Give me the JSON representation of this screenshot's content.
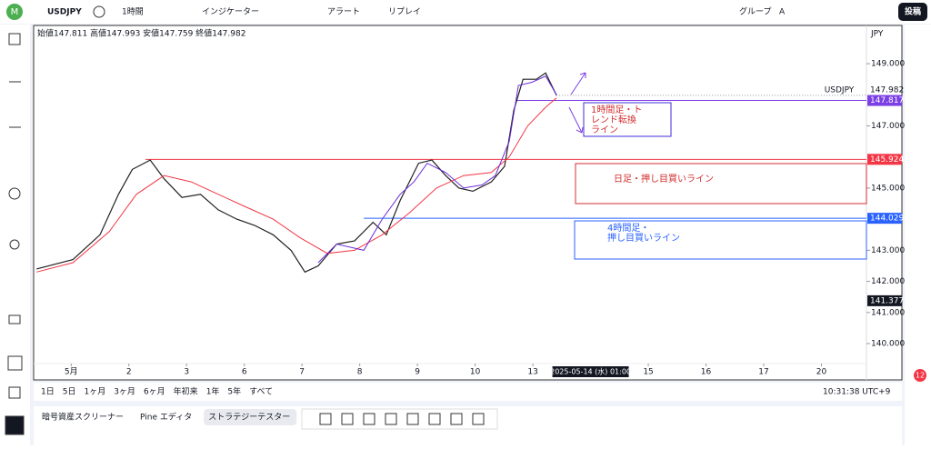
{
  "toolbar": {
    "symbol": "USDJPY",
    "interval": "1時間",
    "indicators": "インジケーター",
    "alert": "アラート",
    "replay": "リプレイ",
    "group": "グループ",
    "group_letter": "A",
    "publish": "投稿"
  },
  "chart": {
    "ohlc": "始値147.811 高値147.993 安値147.759 終値147.982",
    "currency": "JPY",
    "ylim": [
      138.86,
      150.23
    ],
    "xlim": [
      -0.65,
      13.78
    ],
    "yticks": [
      {
        "value": 149,
        "label": "149.000"
      },
      {
        "value": 147,
        "label": "147.000"
      },
      {
        "value": 145,
        "label": "145.000"
      },
      {
        "value": 143,
        "label": "143.000"
      },
      {
        "value": 142,
        "label": "142.000"
      },
      {
        "value": 141,
        "label": "141.000"
      },
      {
        "value": 140,
        "label": "140.000"
      }
    ],
    "xticks": [
      {
        "value": 0,
        "label": "5月"
      },
      {
        "value": 1,
        "label": "2"
      },
      {
        "value": 2,
        "label": "3"
      },
      {
        "value": 3,
        "label": "6"
      },
      {
        "value": 4,
        "label": "7"
      },
      {
        "value": 5,
        "label": "8"
      },
      {
        "value": 6,
        "label": "9"
      },
      {
        "value": 7,
        "label": "10"
      },
      {
        "value": 8,
        "label": "13"
      },
      {
        "value": 10,
        "label": "15"
      },
      {
        "value": 11,
        "label": "16"
      },
      {
        "value": 12,
        "label": "17"
      },
      {
        "value": 13,
        "label": "20"
      }
    ],
    "crosshair": {
      "x": 9,
      "label": "2025-05-14 (水)  01:00",
      "price": {
        "value": 141.377,
        "label": "141.377"
      }
    },
    "series": [
      {
        "name": "USDJPY",
        "color": "#222222",
        "x": [
          -0.6,
          0.03,
          0.5,
          0.82,
          1.06,
          1.37,
          1.61,
          1.92,
          2.24,
          2.55,
          2.87,
          3.18,
          3.5,
          3.81,
          4.05,
          4.28,
          4.6,
          4.91,
          5.23,
          5.46,
          5.7,
          6.02,
          6.25,
          6.49,
          6.72,
          6.96,
          7.28,
          7.51,
          7.67,
          7.83,
          8.06,
          8.22,
          8.41
        ],
        "values": [
          142.4,
          142.7,
          143.5,
          144.8,
          145.6,
          145.9,
          145.3,
          144.7,
          144.8,
          144.3,
          144.0,
          143.8,
          143.5,
          143.0,
          142.3,
          142.5,
          143.2,
          143.3,
          143.9,
          143.5,
          144.6,
          145.8,
          145.9,
          145.4,
          145.0,
          144.9,
          145.2,
          145.7,
          147.5,
          148.5,
          148.5,
          148.7,
          147.982
        ]
      },
      {
        "color": "#f23645",
        "x": [
          -0.6,
          0.03,
          0.66,
          1.13,
          1.61,
          2.08,
          2.55,
          3.02,
          3.5,
          3.97,
          4.44,
          4.91,
          5.39,
          5.86,
          6.33,
          6.8,
          7.28,
          7.59,
          7.91,
          8.22,
          8.41
        ],
        "values": [
          142.3,
          142.6,
          143.6,
          144.8,
          145.4,
          145.2,
          144.8,
          144.4,
          144.0,
          143.4,
          142.9,
          143.0,
          143.5,
          144.2,
          145.0,
          145.4,
          145.5,
          146.0,
          147.0,
          147.6,
          147.9
        ]
      },
      {
        "color": "#6a2bd9",
        "x": [
          4.28,
          4.6,
          5.07,
          5.39,
          5.7,
          5.94,
          6.17,
          6.49,
          6.8,
          7.12,
          7.35,
          7.59,
          7.75,
          7.98,
          8.22,
          8.41
        ],
        "values": [
          142.6,
          143.2,
          143.0,
          144.0,
          144.8,
          145.2,
          145.8,
          145.5,
          145.0,
          145.1,
          145.4,
          146.5,
          148.3,
          148.4,
          148.6,
          148.0
        ]
      }
    ],
    "last_price": {
      "name": "USDJPY",
      "value": 147.982,
      "label": "147.982"
    },
    "levels": [
      {
        "value": 147.817,
        "label": "147.817",
        "color": "#7b3fe4",
        "from": 7.7
      },
      {
        "value": 145.924,
        "label": "145.924",
        "color": "#f23645",
        "from": 1.29
      },
      {
        "value": 144.029,
        "label": "144.029",
        "color": "#2962ff",
        "from": 5.07
      }
    ],
    "annotations": [
      {
        "lines": [
          "1時間足・ト",
          "レンド転換",
          "ライン"
        ],
        "color": "#d32f2f",
        "border": "#3f2bd9"
      },
      {
        "lines": [
          "日足・押し目買いライン"
        ],
        "color": "#d32f2f",
        "border": "#d32f2f"
      },
      {
        "lines": [
          "4時間足・",
          "押し目買いライン"
        ],
        "color": "#2962ff",
        "border": "#2962ff"
      }
    ]
  },
  "bottom_bar": {
    "ranges": [
      "1日",
      "5日",
      "1ヶ月",
      "3ヶ月",
      "6ヶ月",
      "年初来",
      "1年",
      "5年",
      "すべて"
    ],
    "clock": "10:31:38 UTC+9"
  },
  "panel_tabs": [
    "暗号資産スクリーナー",
    "Pine エディタ",
    "ストラテジーテスター"
  ],
  "badge": "12"
}
